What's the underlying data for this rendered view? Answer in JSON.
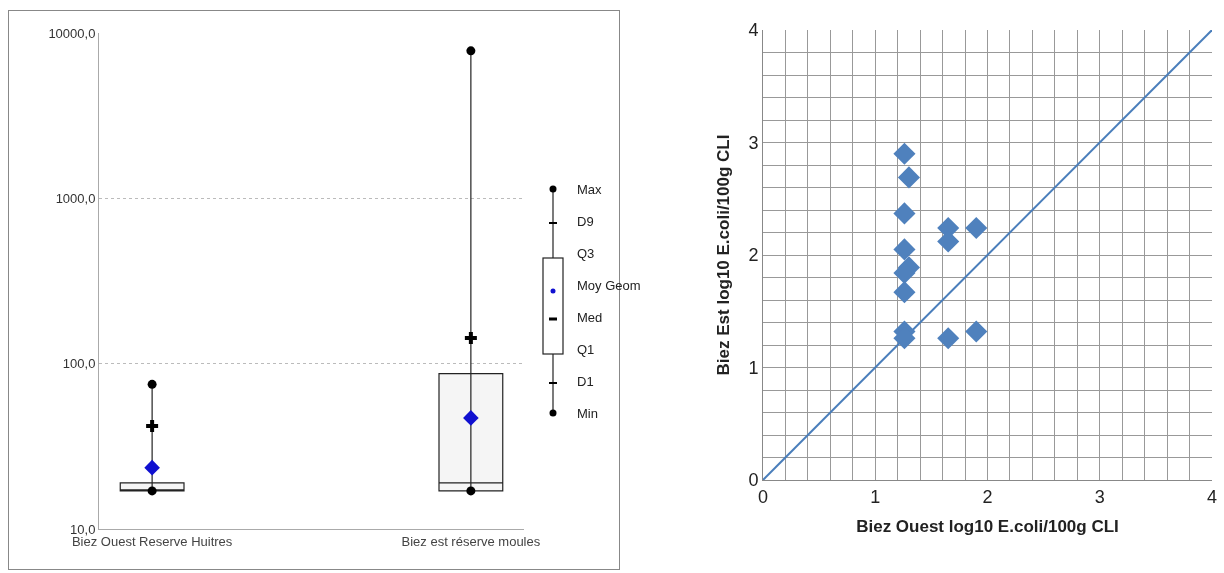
{
  "chart_data": [
    {
      "type": "box",
      "categories": [
        "Biez Ouest Reserve Huitres",
        "Biez est réserve moules"
      ],
      "boxes": [
        {
          "low": 17,
          "q1": 17,
          "median": 17,
          "q3": 19,
          "high": 75,
          "mean": 23.5
        },
        {
          "low": 17,
          "q1": 17,
          "median": 19,
          "q3": 87,
          "high": 7800,
          "mean": 47
        }
      ],
      "series": [
        {
          "type": "scatter",
          "x": [
            "Biez Ouest Reserve Huitres",
            "Biez est réserve moules"
          ],
          "values": [
            42,
            143
          ],
          "color": "#000000",
          "marker": "cross"
        },
        {
          "type": "scatter",
          "marker": "circle",
          "x": [
            "Biez Ouest Reserve Huitres",
            "Biez est réserve moules"
          ],
          "values": [
            75,
            7800
          ],
          "color": "#000000"
        },
        {
          "type": "scatter",
          "marker": "circle",
          "x": [
            "Biez Ouest Reserve Huitres",
            "Biez est réserve moules"
          ],
          "values": [
            17,
            17
          ],
          "color": "#000000"
        }
      ],
      "log": true,
      "ylim": [
        10,
        10000
      ],
      "yticks": [
        {
          "value": 10,
          "label": "10,0"
        },
        {
          "value": 100,
          "label": "100,0"
        },
        {
          "value": 1000,
          "label": "1000,0"
        },
        {
          "value": 10000,
          "label": "10000,0"
        }
      ],
      "grid": "y",
      "annotations": [
        "Max",
        "D9",
        "Q3",
        "Moy Geom",
        "Med",
        "Q1",
        "D1",
        "Min"
      ]
    },
    {
      "type": "scatter",
      "xlabel": "Biez Ouest log10 E.coli/100g CLI",
      "ylabel": "Biez Est log10 E.coli/100g CLI",
      "series": [
        {
          "type": "scatter",
          "color": "#4f81bd",
          "marker": "diamond",
          "x": [
            1.26,
            1.3,
            1.26,
            1.26,
            1.3,
            1.26,
            1.26,
            1.26,
            1.26,
            1.65,
            1.65,
            1.9,
            1.65,
            1.9
          ],
          "values": [
            2.9,
            2.69,
            2.37,
            2.05,
            1.89,
            1.84,
            1.67,
            1.32,
            1.26,
            2.24,
            2.12,
            2.24,
            1.26,
            1.32
          ]
        },
        {
          "type": "line",
          "color": "#4a7ebb",
          "marker": "none",
          "x": [
            0,
            4
          ],
          "values": [
            0,
            4
          ]
        }
      ],
      "xlim": [
        0,
        4
      ],
      "ylim": [
        0,
        4
      ],
      "xticks": [
        0,
        {
          "value": 0.2,
          "label": null
        },
        {
          "value": 0.4,
          "label": null
        },
        {
          "value": 0.6,
          "label": null
        },
        {
          "value": 0.8,
          "label": null
        },
        1,
        {
          "value": 1.2,
          "label": null
        },
        {
          "value": 1.4,
          "label": null
        },
        {
          "value": 1.6,
          "label": null
        },
        {
          "value": 1.8,
          "label": null
        },
        2,
        {
          "value": 2.2,
          "label": null
        },
        {
          "value": 2.4,
          "label": null
        },
        {
          "value": 2.6,
          "label": null
        },
        {
          "value": 2.8,
          "label": null
        },
        3,
        {
          "value": 3.2,
          "label": null
        },
        {
          "value": 3.4,
          "label": null
        },
        {
          "value": 3.6,
          "label": null
        },
        {
          "value": 3.8,
          "label": null
        },
        4
      ],
      "yticks": [
        0,
        {
          "value": 0.2,
          "label": null
        },
        {
          "value": 0.4,
          "label": null
        },
        {
          "value": 0.6,
          "label": null
        },
        {
          "value": 0.8,
          "label": null
        },
        1,
        {
          "value": 1.2,
          "label": null
        },
        {
          "value": 1.4,
          "label": null
        },
        {
          "value": 1.6,
          "label": null
        },
        {
          "value": 1.8,
          "label": null
        },
        2,
        {
          "value": 2.2,
          "label": null
        },
        {
          "value": 2.4,
          "label": null
        },
        {
          "value": 2.6,
          "label": null
        },
        {
          "value": 2.8,
          "label": null
        },
        3,
        {
          "value": 3.2,
          "label": null
        },
        {
          "value": 3.4,
          "label": null
        },
        {
          "value": 3.6,
          "label": null
        },
        {
          "value": 3.8,
          "label": null
        },
        4
      ],
      "grid": true
    }
  ]
}
